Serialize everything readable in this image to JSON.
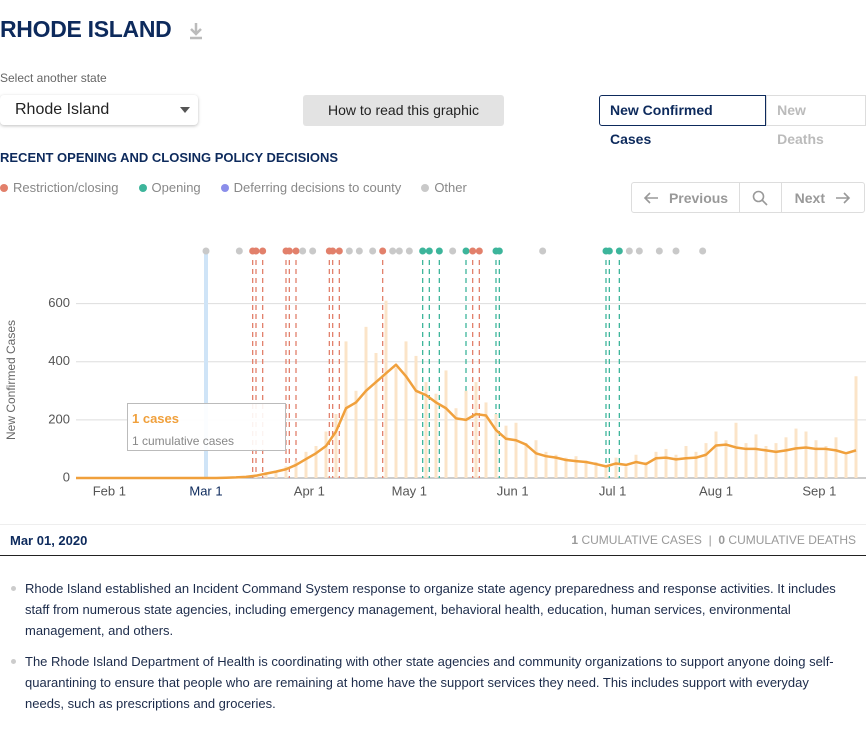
{
  "header": {
    "title": "RHODE ISLAND"
  },
  "controls": {
    "select_label": "Select another state",
    "select_value": "Rhode Island",
    "help_button": "How to read this graphic",
    "tabs": [
      "New Confirmed Cases",
      "New Deaths"
    ],
    "active_tab": 0
  },
  "policy": {
    "title": "RECENT OPENING AND CLOSING POLICY DECISIONS",
    "legend": [
      {
        "name": "Restriction/closing",
        "color": "#e2806b"
      },
      {
        "name": "Opening",
        "color": "#3db59b"
      },
      {
        "name": "Deferring decisions to county",
        "color": "#8b8eea"
      },
      {
        "name": "Other",
        "color": "#c9c9c9"
      }
    ],
    "nav": {
      "previous": "Previous",
      "next": "Next"
    }
  },
  "chart_data": {
    "type": "bar-line",
    "y_label": "New Confirmed Cases",
    "x": [
      "Jan 22",
      "Jan 25",
      "Jan 28",
      "Jan 31",
      "Feb 3",
      "Feb 6",
      "Feb 9",
      "Feb 12",
      "Feb 15",
      "Feb 18",
      "Feb 21",
      "Feb 24",
      "Feb 27",
      "Mar 1",
      "Mar 4",
      "Mar 7",
      "Mar 10",
      "Mar 13",
      "Mar 16",
      "Mar 19",
      "Mar 22",
      "Mar 25",
      "Mar 28",
      "Mar 31",
      "Apr 3",
      "Apr 6",
      "Apr 9",
      "Apr 12",
      "Apr 15",
      "Apr 18",
      "Apr 21",
      "Apr 24",
      "Apr 27",
      "Apr 30",
      "May 3",
      "May 6",
      "May 9",
      "May 12",
      "May 15",
      "May 18",
      "May 21",
      "May 24",
      "May 27",
      "May 30",
      "Jun 2",
      "Jun 5",
      "Jun 8",
      "Jun 11",
      "Jun 14",
      "Jun 17",
      "Jun 20",
      "Jun 23",
      "Jun 26",
      "Jun 29",
      "Jul 2",
      "Jul 5",
      "Jul 8",
      "Jul 11",
      "Jul 14",
      "Jul 17",
      "Jul 20",
      "Jul 23",
      "Jul 26",
      "Jul 29",
      "Aug 1",
      "Aug 4",
      "Aug 7",
      "Aug 10",
      "Aug 13",
      "Aug 16",
      "Aug 19",
      "Aug 22",
      "Aug 25",
      "Aug 28",
      "Aug 31",
      "Sep 3",
      "Sep 6",
      "Sep 9",
      "Sep 12"
    ],
    "series": [
      {
        "kind": "bar",
        "color": "#fbe4c8",
        "values": [
          0,
          0,
          0,
          0,
          0,
          0,
          0,
          0,
          0,
          0,
          0,
          0,
          0,
          0,
          0,
          2,
          3,
          5,
          10,
          20,
          25,
          40,
          60,
          90,
          110,
          160,
          220,
          470,
          300,
          520,
          430,
          610,
          380,
          470,
          420,
          330,
          290,
          370,
          240,
          300,
          330,
          260,
          220,
          180,
          190,
          120,
          130,
          90,
          80,
          70,
          75,
          60,
          55,
          45,
          70,
          40,
          80,
          55,
          90,
          100,
          80,
          110,
          90,
          120,
          160,
          130,
          190,
          120,
          150,
          110,
          120,
          140,
          170,
          160,
          130,
          110,
          140,
          80,
          350
        ]
      },
      {
        "kind": "line",
        "color": "#f0a03c",
        "values": [
          0,
          0,
          0,
          0,
          0,
          0,
          0,
          0,
          0,
          0,
          0,
          0,
          0,
          0,
          0,
          1,
          2,
          4,
          8,
          15,
          22,
          30,
          45,
          65,
          85,
          110,
          160,
          240,
          260,
          300,
          330,
          360,
          390,
          350,
          300,
          285,
          260,
          240,
          205,
          200,
          220,
          215,
          165,
          135,
          130,
          115,
          85,
          75,
          70,
          62,
          58,
          55,
          48,
          40,
          50,
          45,
          55,
          48,
          68,
          70,
          64,
          68,
          70,
          80,
          112,
          115,
          105,
          100,
          100,
          95,
          90,
          95,
          102,
          105,
          100,
          100,
          95,
          85,
          95
        ]
      }
    ],
    "xlim": [
      "Jan 22",
      "Sep 15"
    ],
    "xticks": [
      "Feb 1",
      "Mar 1",
      "Apr 1",
      "May 1",
      "Jun 1",
      "Jul 1",
      "Aug 1",
      "Sep 1"
    ],
    "highlight_tick": 1,
    "ylim": [
      0,
      750
    ],
    "yticks": [
      0,
      200,
      400,
      600
    ],
    "grid": true,
    "events": [
      {
        "date": "Mar 1",
        "category": 3
      },
      {
        "date": "Mar 11",
        "category": 3
      },
      {
        "date": "Mar 15",
        "category": 0
      },
      {
        "date": "Mar 16",
        "category": 0
      },
      {
        "date": "Mar 18",
        "category": 0
      },
      {
        "date": "Mar 25",
        "category": 0
      },
      {
        "date": "Mar 26",
        "category": 0
      },
      {
        "date": "Mar 28",
        "category": 0
      },
      {
        "date": "Mar 30",
        "category": 3
      },
      {
        "date": "Apr 2",
        "category": 3
      },
      {
        "date": "Apr 7",
        "category": 0
      },
      {
        "date": "Apr 8",
        "category": 0
      },
      {
        "date": "Apr 10",
        "category": 0
      },
      {
        "date": "Apr 13",
        "category": 3
      },
      {
        "date": "Apr 16",
        "category": 3
      },
      {
        "date": "Apr 20",
        "category": 3
      },
      {
        "date": "Apr 23",
        "category": 0
      },
      {
        "date": "Apr 26",
        "category": 3
      },
      {
        "date": "Apr 28",
        "category": 3
      },
      {
        "date": "May 1",
        "category": 3
      },
      {
        "date": "May 5",
        "category": 1
      },
      {
        "date": "May 7",
        "category": 1
      },
      {
        "date": "May 10",
        "category": 1
      },
      {
        "date": "May 14",
        "category": 3
      },
      {
        "date": "May 18",
        "category": 1
      },
      {
        "date": "May 20",
        "category": 0
      },
      {
        "date": "May 22",
        "category": 0
      },
      {
        "date": "May 27",
        "category": 1
      },
      {
        "date": "May 28",
        "category": 1
      },
      {
        "date": "Jun 10",
        "category": 3
      },
      {
        "date": "Jun 29",
        "category": 1
      },
      {
        "date": "Jun 30",
        "category": 1
      },
      {
        "date": "Jul 3",
        "category": 1
      },
      {
        "date": "Jul 6",
        "category": 3
      },
      {
        "date": "Jul 9",
        "category": 3
      },
      {
        "date": "Jul 15",
        "category": 3
      },
      {
        "date": "Jul 20",
        "category": 3
      },
      {
        "date": "Jul 28",
        "category": 3
      }
    ],
    "tooltip": {
      "title": "1 cases",
      "subtitle": "1 cumulative cases"
    }
  },
  "status": {
    "date": "Mar 01, 2020",
    "cases": "1",
    "cases_label": "CUMULATIVE CASES",
    "separator": "|",
    "deaths": "0",
    "deaths_label": "CUMULATIVE DEATHS"
  },
  "notes": [
    "Rhode Island established an Incident Command System response to organize state agency preparedness and response activities. It includes staff from numerous state agencies, including emergency management, behavioral health, education, human services, environmental management, and others.",
    "The Rhode Island Department of Health is coordinating with other state agencies and community organizations to support anyone doing self-quarantining to ensure that people who are remaining at home have the support services they need. This includes support with everyday needs, such as prescriptions and groceries."
  ]
}
